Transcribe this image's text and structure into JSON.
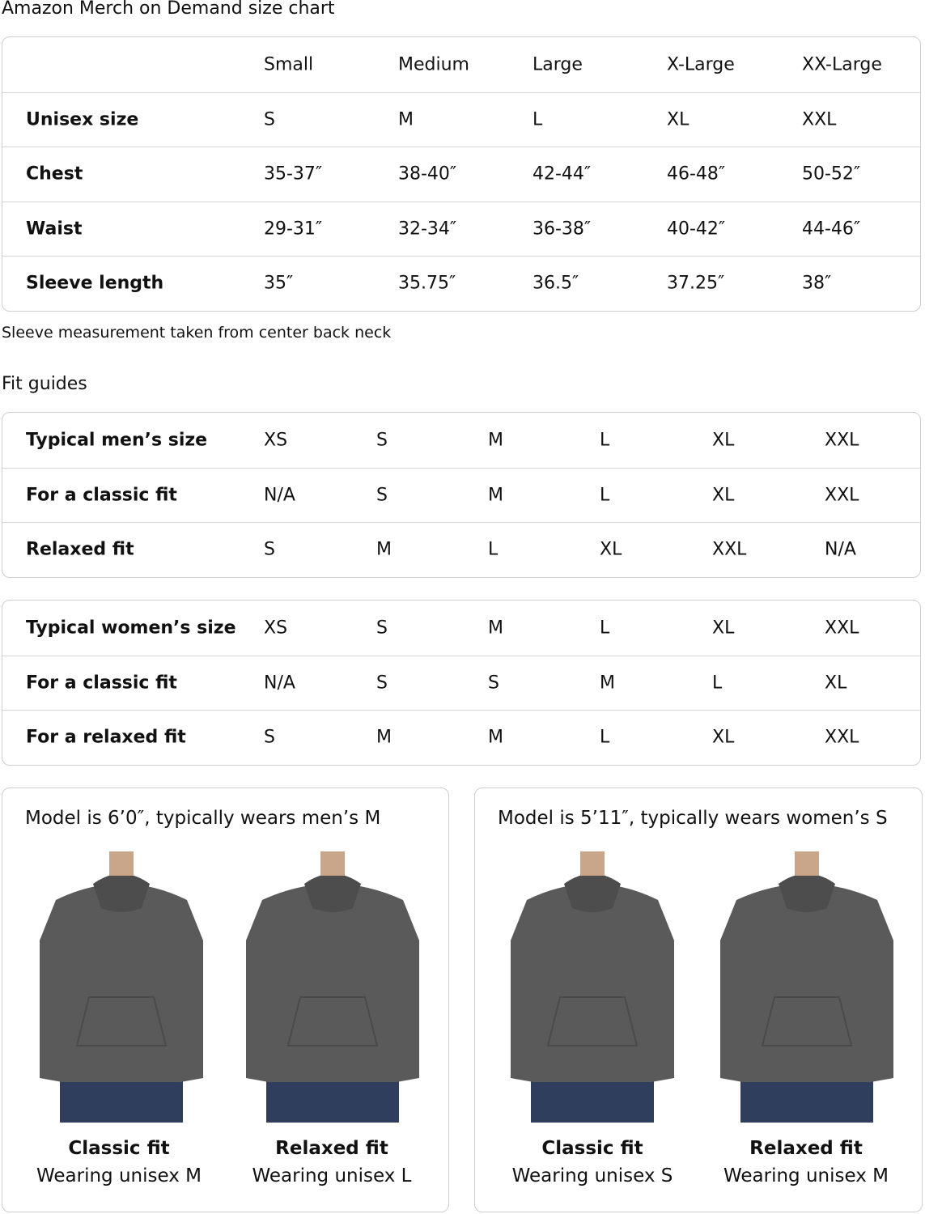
{
  "title": "Amazon Merch on Demand size chart",
  "size_chart": {
    "headers": [
      "",
      "Small",
      "Medium",
      "Large",
      "X-Large",
      "XX-Large"
    ],
    "rows": [
      {
        "label": "Unisex size",
        "values": [
          "S",
          "M",
          "L",
          "XL",
          "XXL"
        ]
      },
      {
        "label": "Chest",
        "values": [
          "35-37″",
          "38-40″",
          "42-44″",
          "46-48″",
          "50-52″"
        ]
      },
      {
        "label": "Waist",
        "values": [
          "29-31″",
          "32-34″",
          "36-38″",
          "40-42″",
          "44-46″"
        ]
      },
      {
        "label": "Sleeve length",
        "values": [
          "35″",
          "35.75″",
          "36.5″",
          "37.25″",
          "38″"
        ]
      }
    ]
  },
  "note": "Sleeve measurement taken from center back neck",
  "fit_guides_title": "Fit guides",
  "mens_fit": {
    "rows": [
      {
        "label": "Typical men’s size",
        "values": [
          "XS",
          "S",
          "M",
          "L",
          "XL",
          "XXL"
        ]
      },
      {
        "label": "For a classic fit",
        "values": [
          "N/A",
          "S",
          "M",
          "L",
          "XL",
          "XXL"
        ]
      },
      {
        "label": "Relaxed fit",
        "values": [
          "S",
          "M",
          "L",
          "XL",
          "XXL",
          "N/A"
        ]
      }
    ]
  },
  "womens_fit": {
    "rows": [
      {
        "label": "Typical women’s size",
        "values": [
          "XS",
          "S",
          "M",
          "L",
          "XL",
          "XXL"
        ]
      },
      {
        "label": "For a classic fit",
        "values": [
          "N/A",
          "S",
          "S",
          "M",
          "L",
          "XL"
        ]
      },
      {
        "label": "For a relaxed fit",
        "values": [
          "S",
          "M",
          "M",
          "L",
          "XL",
          "XXL"
        ]
      }
    ]
  },
  "models": [
    {
      "title": "Model is 6’0″, typically wears men’s M",
      "photos": [
        {
          "caption": "Classic fit",
          "sub": "Wearing unisex M"
        },
        {
          "caption": "Relaxed fit",
          "sub": "Wearing unisex L"
        }
      ]
    },
    {
      "title": "Model is 5’11″, typically wears women’s S",
      "photos": [
        {
          "caption": "Classic fit",
          "sub": "Wearing unisex S"
        },
        {
          "caption": "Relaxed fit",
          "sub": "Wearing unisex M"
        }
      ]
    }
  ],
  "colors": {
    "border": "#cfcfcf",
    "hoodie": "#5a5a5a",
    "jeans": "#2e3e5c"
  }
}
